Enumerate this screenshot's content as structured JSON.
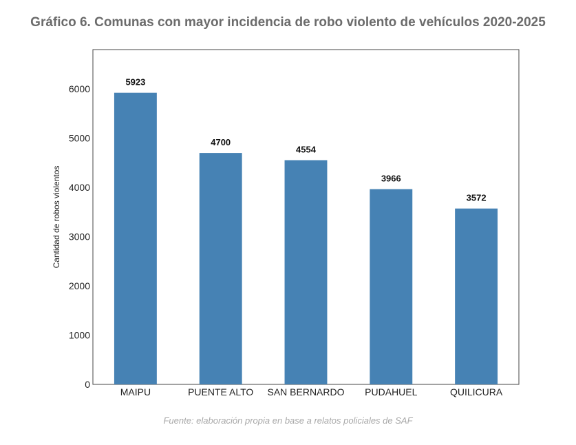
{
  "title": "Gráfico 6. Comunas con mayor incidencia de robo violento de vehículos 2020-2025",
  "source": "Fuente: elaboración propia en base a relatos policiales de SAF",
  "chart_data": {
    "type": "bar",
    "categories": [
      "MAIPU",
      "PUENTE ALTO",
      "SAN BERNARDO",
      "PUDAHUEL",
      "QUILICURA"
    ],
    "values": [
      5923,
      4700,
      4554,
      3966,
      3572
    ],
    "data_labels": [
      "5923",
      "4700",
      "4554",
      "3966",
      "3572"
    ],
    "ylabel": "Cantidad de robos violentos",
    "xlabel": "",
    "ylim": [
      0,
      6800
    ],
    "yticks": [
      0,
      1000,
      2000,
      3000,
      4000,
      5000,
      6000
    ],
    "grid": false,
    "bar_color": "#4682b4"
  }
}
